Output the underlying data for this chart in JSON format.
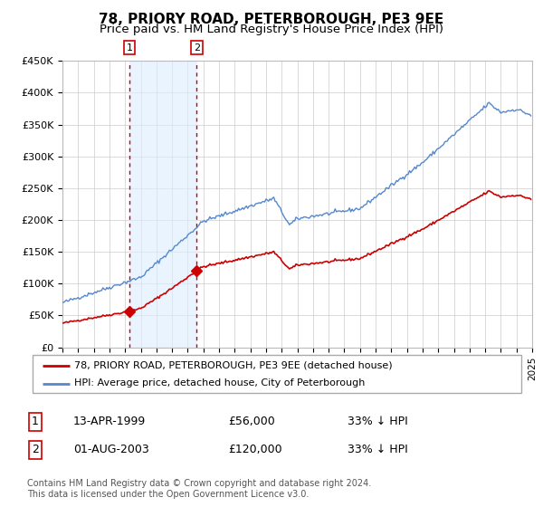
{
  "title": "78, PRIORY ROAD, PETERBOROUGH, PE3 9EE",
  "subtitle": "Price paid vs. HM Land Registry's House Price Index (HPI)",
  "ylim": [
    0,
    450000
  ],
  "yticks": [
    0,
    50000,
    100000,
    150000,
    200000,
    250000,
    300000,
    350000,
    400000,
    450000
  ],
  "ytick_labels": [
    "£0",
    "£50K",
    "£100K",
    "£150K",
    "£200K",
    "£250K",
    "£300K",
    "£350K",
    "£400K",
    "£450K"
  ],
  "background_color": "#ffffff",
  "grid_color": "#cccccc",
  "hpi_line_color": "#5588cc",
  "price_line_color": "#cc0000",
  "sale1_date": 1999.29,
  "sale1_price": 56000,
  "sale2_date": 2003.58,
  "sale2_price": 120000,
  "vline_color": "#cc0000",
  "shade_color": "#ddeeff",
  "legend_label_price": "78, PRIORY ROAD, PETERBOROUGH, PE3 9EE (detached house)",
  "legend_label_hpi": "HPI: Average price, detached house, City of Peterborough",
  "table_row1": [
    "1",
    "13-APR-1999",
    "£56,000",
    "33% ↓ HPI"
  ],
  "table_row2": [
    "2",
    "01-AUG-2003",
    "£120,000",
    "33% ↓ HPI"
  ],
  "footnote": "Contains HM Land Registry data © Crown copyright and database right 2024.\nThis data is licensed under the Open Government Licence v3.0.",
  "title_fontsize": 11,
  "subtitle_fontsize": 9.5,
  "xmin": 1995,
  "xmax": 2025
}
